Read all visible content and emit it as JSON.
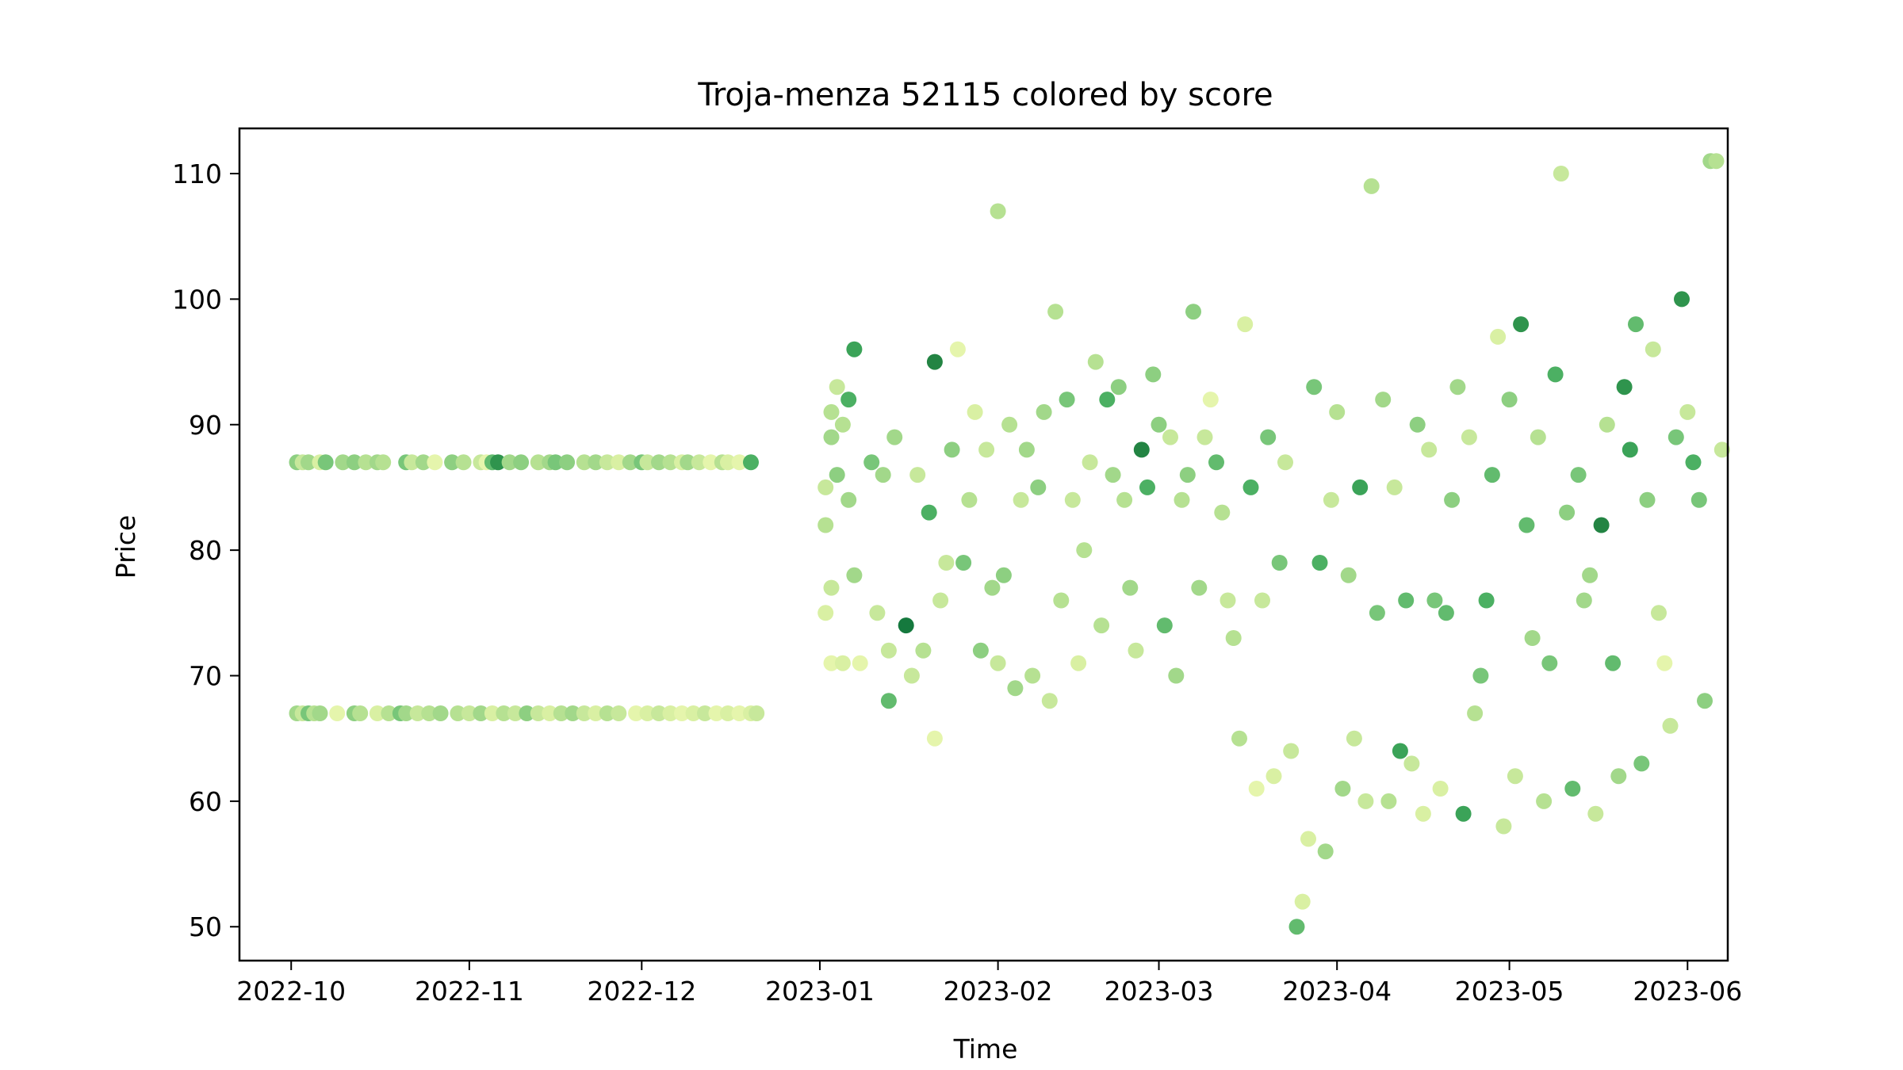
{
  "chart_data": {
    "type": "scatter",
    "title": "Troja-menza 52115 colored by score",
    "xlabel": "Time",
    "ylabel": "Price",
    "xlim": [
      "2022-09-22",
      "2023-06-08"
    ],
    "ylim": [
      47.3,
      113.6
    ],
    "xticks": [
      "2022-10",
      "2022-11",
      "2022-12",
      "2023-01",
      "2023-02",
      "2023-03",
      "2023-04",
      "2023-05",
      "2023-06"
    ],
    "xtick_dates": [
      "2022-10-01",
      "2022-11-01",
      "2022-12-01",
      "2023-01-01",
      "2023-02-01",
      "2023-03-01",
      "2023-04-01",
      "2023-05-01",
      "2023-06-01"
    ],
    "yticks": [
      50,
      60,
      70,
      80,
      90,
      100,
      110
    ],
    "colormap": "YlGn",
    "colormap_stops": [
      "#ffffe5",
      "#f7fcb9",
      "#d9f0a3",
      "#addd8e",
      "#78c679",
      "#41ab5d",
      "#238443",
      "#006837",
      "#004529"
    ],
    "grid": false,
    "legend": "none",
    "points": [
      [
        "2022-10-02",
        87,
        0.45
      ],
      [
        "2022-10-03",
        87,
        0.3
      ],
      [
        "2022-10-04",
        87,
        0.4
      ],
      [
        "2022-10-06",
        87,
        0.25
      ],
      [
        "2022-10-07",
        87,
        0.5
      ],
      [
        "2022-10-10",
        87,
        0.4
      ],
      [
        "2022-10-12",
        87,
        0.45
      ],
      [
        "2022-10-14",
        87,
        0.35
      ],
      [
        "2022-10-16",
        87,
        0.4
      ],
      [
        "2022-10-17",
        87,
        0.35
      ],
      [
        "2022-10-21",
        87,
        0.5
      ],
      [
        "2022-10-22",
        87,
        0.3
      ],
      [
        "2022-10-24",
        87,
        0.4
      ],
      [
        "2022-10-26",
        87,
        0.2
      ],
      [
        "2022-10-29",
        87,
        0.45
      ],
      [
        "2022-10-31",
        87,
        0.35
      ],
      [
        "2022-11-03",
        87,
        0.3
      ],
      [
        "2022-11-04",
        87,
        0.2
      ],
      [
        "2022-11-05",
        87,
        0.55
      ],
      [
        "2022-11-06",
        87,
        0.7
      ],
      [
        "2022-11-08",
        87,
        0.4
      ],
      [
        "2022-11-10",
        87,
        0.45
      ],
      [
        "2022-11-13",
        87,
        0.35
      ],
      [
        "2022-11-15",
        87,
        0.4
      ],
      [
        "2022-11-16",
        87,
        0.5
      ],
      [
        "2022-11-18",
        87,
        0.45
      ],
      [
        "2022-11-21",
        87,
        0.35
      ],
      [
        "2022-11-23",
        87,
        0.4
      ],
      [
        "2022-11-25",
        87,
        0.3
      ],
      [
        "2022-11-27",
        87,
        0.25
      ],
      [
        "2022-11-29",
        87,
        0.4
      ],
      [
        "2022-12-01",
        87,
        0.5
      ],
      [
        "2022-12-02",
        87,
        0.3
      ],
      [
        "2022-12-04",
        87,
        0.4
      ],
      [
        "2022-12-06",
        87,
        0.35
      ],
      [
        "2022-12-08",
        87,
        0.25
      ],
      [
        "2022-12-09",
        87,
        0.4
      ],
      [
        "2022-12-11",
        87,
        0.3
      ],
      [
        "2022-12-13",
        87,
        0.2
      ],
      [
        "2022-12-15",
        87,
        0.35
      ],
      [
        "2022-12-16",
        87,
        0.25
      ],
      [
        "2022-12-18",
        87,
        0.2
      ],
      [
        "2022-12-20",
        87,
        0.6
      ],
      [
        "2022-10-02",
        67,
        0.4
      ],
      [
        "2022-10-03",
        67,
        0.3
      ],
      [
        "2022-10-04",
        67,
        0.5
      ],
      [
        "2022-10-05",
        67,
        0.35
      ],
      [
        "2022-10-06",
        67,
        0.4
      ],
      [
        "2022-10-09",
        67,
        0.2
      ],
      [
        "2022-10-12",
        67,
        0.45
      ],
      [
        "2022-10-13",
        67,
        0.35
      ],
      [
        "2022-10-16",
        67,
        0.25
      ],
      [
        "2022-10-18",
        67,
        0.35
      ],
      [
        "2022-10-20",
        67,
        0.5
      ],
      [
        "2022-10-21",
        67,
        0.4
      ],
      [
        "2022-10-23",
        67,
        0.3
      ],
      [
        "2022-10-25",
        67,
        0.35
      ],
      [
        "2022-10-27",
        67,
        0.4
      ],
      [
        "2022-10-30",
        67,
        0.35
      ],
      [
        "2022-11-01",
        67,
        0.3
      ],
      [
        "2022-11-03",
        67,
        0.4
      ],
      [
        "2022-11-05",
        67,
        0.25
      ],
      [
        "2022-11-07",
        67,
        0.35
      ],
      [
        "2022-11-09",
        67,
        0.3
      ],
      [
        "2022-11-11",
        67,
        0.45
      ],
      [
        "2022-11-13",
        67,
        0.3
      ],
      [
        "2022-11-15",
        67,
        0.25
      ],
      [
        "2022-11-17",
        67,
        0.35
      ],
      [
        "2022-11-19",
        67,
        0.4
      ],
      [
        "2022-11-21",
        67,
        0.3
      ],
      [
        "2022-11-23",
        67,
        0.25
      ],
      [
        "2022-11-25",
        67,
        0.35
      ],
      [
        "2022-11-27",
        67,
        0.3
      ],
      [
        "2022-11-30",
        67,
        0.2
      ],
      [
        "2022-12-02",
        67,
        0.25
      ],
      [
        "2022-12-04",
        67,
        0.3
      ],
      [
        "2022-12-06",
        67,
        0.25
      ],
      [
        "2022-12-08",
        67,
        0.2
      ],
      [
        "2022-12-10",
        67,
        0.25
      ],
      [
        "2022-12-12",
        67,
        0.3
      ],
      [
        "2022-12-14",
        67,
        0.2
      ],
      [
        "2022-12-16",
        67,
        0.25
      ],
      [
        "2022-12-18",
        67,
        0.2
      ],
      [
        "2022-12-20",
        67,
        0.25
      ],
      [
        "2022-12-21",
        67,
        0.3
      ],
      [
        "2023-01-02",
        85,
        0.3
      ],
      [
        "2023-01-02",
        82,
        0.35
      ],
      [
        "2023-01-03",
        89,
        0.4
      ],
      [
        "2023-01-03",
        91,
        0.35
      ],
      [
        "2023-01-04",
        93,
        0.3
      ],
      [
        "2023-01-05",
        90,
        0.35
      ],
      [
        "2023-01-06",
        92,
        0.6
      ],
      [
        "2023-01-07",
        96,
        0.65
      ],
      [
        "2023-01-03",
        77,
        0.3
      ],
      [
        "2023-01-02",
        75,
        0.25
      ],
      [
        "2023-01-04",
        86,
        0.45
      ],
      [
        "2023-01-06",
        84,
        0.4
      ],
      [
        "2023-01-07",
        78,
        0.4
      ],
      [
        "2023-01-03",
        71,
        0.2
      ],
      [
        "2023-01-05",
        71,
        0.25
      ],
      [
        "2023-01-08",
        71,
        0.2
      ],
      [
        "2023-01-10",
        87,
        0.5
      ],
      [
        "2023-01-11",
        75,
        0.3
      ],
      [
        "2023-01-12",
        86,
        0.4
      ],
      [
        "2023-01-13",
        72,
        0.3
      ],
      [
        "2023-01-13",
        68,
        0.55
      ],
      [
        "2023-01-14",
        89,
        0.4
      ],
      [
        "2023-01-16",
        74,
        0.8
      ],
      [
        "2023-01-17",
        70,
        0.3
      ],
      [
        "2023-01-18",
        86,
        0.3
      ],
      [
        "2023-01-19",
        72,
        0.35
      ],
      [
        "2023-01-20",
        83,
        0.6
      ],
      [
        "2023-01-21",
        95,
        0.75
      ],
      [
        "2023-01-21",
        65,
        0.2
      ],
      [
        "2023-01-22",
        76,
        0.3
      ],
      [
        "2023-01-23",
        79,
        0.3
      ],
      [
        "2023-01-24",
        88,
        0.45
      ],
      [
        "2023-01-25",
        96,
        0.2
      ],
      [
        "2023-01-26",
        79,
        0.5
      ],
      [
        "2023-01-27",
        84,
        0.35
      ],
      [
        "2023-01-28",
        91,
        0.25
      ],
      [
        "2023-01-29",
        72,
        0.45
      ],
      [
        "2023-01-30",
        88,
        0.3
      ],
      [
        "2023-01-31",
        77,
        0.4
      ],
      [
        "2023-02-01",
        107,
        0.35
      ],
      [
        "2023-02-01",
        71,
        0.3
      ],
      [
        "2023-02-02",
        78,
        0.45
      ],
      [
        "2023-02-03",
        90,
        0.35
      ],
      [
        "2023-02-04",
        69,
        0.4
      ],
      [
        "2023-02-05",
        84,
        0.3
      ],
      [
        "2023-02-06",
        88,
        0.4
      ],
      [
        "2023-02-07",
        70,
        0.35
      ],
      [
        "2023-02-08",
        85,
        0.45
      ],
      [
        "2023-02-09",
        91,
        0.4
      ],
      [
        "2023-02-10",
        68,
        0.3
      ],
      [
        "2023-02-11",
        99,
        0.35
      ],
      [
        "2023-02-12",
        76,
        0.35
      ],
      [
        "2023-02-13",
        92,
        0.5
      ],
      [
        "2023-02-14",
        84,
        0.3
      ],
      [
        "2023-02-15",
        71,
        0.25
      ],
      [
        "2023-02-16",
        80,
        0.35
      ],
      [
        "2023-02-17",
        87,
        0.3
      ],
      [
        "2023-02-18",
        95,
        0.35
      ],
      [
        "2023-02-19",
        74,
        0.35
      ],
      [
        "2023-02-20",
        92,
        0.6
      ],
      [
        "2023-02-21",
        86,
        0.4
      ],
      [
        "2023-02-22",
        93,
        0.45
      ],
      [
        "2023-02-23",
        84,
        0.35
      ],
      [
        "2023-02-24",
        77,
        0.4
      ],
      [
        "2023-02-25",
        72,
        0.3
      ],
      [
        "2023-02-26",
        88,
        0.75
      ],
      [
        "2023-02-27",
        85,
        0.6
      ],
      [
        "2023-02-28",
        94,
        0.45
      ],
      [
        "2023-03-01",
        90,
        0.45
      ],
      [
        "2023-03-02",
        74,
        0.55
      ],
      [
        "2023-03-03",
        89,
        0.3
      ],
      [
        "2023-03-04",
        70,
        0.4
      ],
      [
        "2023-03-05",
        84,
        0.35
      ],
      [
        "2023-03-06",
        86,
        0.45
      ],
      [
        "2023-03-07",
        99,
        0.45
      ],
      [
        "2023-03-08",
        77,
        0.4
      ],
      [
        "2023-03-09",
        89,
        0.3
      ],
      [
        "2023-03-10",
        92,
        0.2
      ],
      [
        "2023-03-11",
        87,
        0.55
      ],
      [
        "2023-03-12",
        83,
        0.35
      ],
      [
        "2023-03-13",
        76,
        0.3
      ],
      [
        "2023-03-14",
        73,
        0.35
      ],
      [
        "2023-03-15",
        65,
        0.35
      ],
      [
        "2023-03-16",
        98,
        0.25
      ],
      [
        "2023-03-17",
        85,
        0.6
      ],
      [
        "2023-03-18",
        61,
        0.2
      ],
      [
        "2023-03-19",
        76,
        0.3
      ],
      [
        "2023-03-20",
        89,
        0.5
      ],
      [
        "2023-03-21",
        62,
        0.25
      ],
      [
        "2023-03-22",
        79,
        0.5
      ],
      [
        "2023-03-23",
        87,
        0.3
      ],
      [
        "2023-03-24",
        64,
        0.3
      ],
      [
        "2023-03-25",
        50,
        0.55
      ],
      [
        "2023-03-26",
        52,
        0.25
      ],
      [
        "2023-03-27",
        57,
        0.25
      ],
      [
        "2023-03-28",
        93,
        0.5
      ],
      [
        "2023-03-29",
        79,
        0.6
      ],
      [
        "2023-03-30",
        56,
        0.4
      ],
      [
        "2023-03-31",
        84,
        0.3
      ],
      [
        "2023-04-01",
        91,
        0.35
      ],
      [
        "2023-04-02",
        61,
        0.4
      ],
      [
        "2023-04-03",
        78,
        0.4
      ],
      [
        "2023-04-04",
        65,
        0.3
      ],
      [
        "2023-04-05",
        85,
        0.65
      ],
      [
        "2023-04-06",
        60,
        0.3
      ],
      [
        "2023-04-07",
        109,
        0.35
      ],
      [
        "2023-04-08",
        75,
        0.5
      ],
      [
        "2023-04-09",
        92,
        0.4
      ],
      [
        "2023-04-10",
        60,
        0.35
      ],
      [
        "2023-04-11",
        85,
        0.3
      ],
      [
        "2023-04-12",
        64,
        0.65
      ],
      [
        "2023-04-13",
        76,
        0.55
      ],
      [
        "2023-04-14",
        63,
        0.3
      ],
      [
        "2023-04-15",
        90,
        0.45
      ],
      [
        "2023-04-16",
        59,
        0.25
      ],
      [
        "2023-04-17",
        88,
        0.3
      ],
      [
        "2023-04-18",
        76,
        0.5
      ],
      [
        "2023-04-19",
        61,
        0.25
      ],
      [
        "2023-04-20",
        75,
        0.55
      ],
      [
        "2023-04-21",
        84,
        0.45
      ],
      [
        "2023-04-22",
        93,
        0.4
      ],
      [
        "2023-04-23",
        59,
        0.65
      ],
      [
        "2023-04-24",
        89,
        0.3
      ],
      [
        "2023-04-25",
        67,
        0.35
      ],
      [
        "2023-04-26",
        70,
        0.5
      ],
      [
        "2023-04-27",
        76,
        0.6
      ],
      [
        "2023-04-28",
        86,
        0.55
      ],
      [
        "2023-04-29",
        97,
        0.25
      ],
      [
        "2023-04-30",
        58,
        0.3
      ],
      [
        "2023-05-01",
        92,
        0.45
      ],
      [
        "2023-05-02",
        62,
        0.3
      ],
      [
        "2023-05-03",
        98,
        0.7
      ],
      [
        "2023-05-04",
        82,
        0.55
      ],
      [
        "2023-05-05",
        73,
        0.4
      ],
      [
        "2023-05-06",
        89,
        0.35
      ],
      [
        "2023-05-07",
        60,
        0.35
      ],
      [
        "2023-05-08",
        71,
        0.5
      ],
      [
        "2023-05-09",
        94,
        0.6
      ],
      [
        "2023-05-10",
        110,
        0.3
      ],
      [
        "2023-05-11",
        83,
        0.45
      ],
      [
        "2023-05-12",
        61,
        0.55
      ],
      [
        "2023-05-13",
        86,
        0.5
      ],
      [
        "2023-05-14",
        76,
        0.4
      ],
      [
        "2023-05-15",
        78,
        0.4
      ],
      [
        "2023-05-16",
        59,
        0.3
      ],
      [
        "2023-05-17",
        82,
        0.75
      ],
      [
        "2023-05-18",
        90,
        0.35
      ],
      [
        "2023-05-19",
        71,
        0.55
      ],
      [
        "2023-05-20",
        62,
        0.4
      ],
      [
        "2023-05-21",
        93,
        0.7
      ],
      [
        "2023-05-22",
        88,
        0.65
      ],
      [
        "2023-05-23",
        98,
        0.55
      ],
      [
        "2023-05-24",
        63,
        0.5
      ],
      [
        "2023-05-25",
        84,
        0.45
      ],
      [
        "2023-05-26",
        96,
        0.3
      ],
      [
        "2023-05-27",
        75,
        0.3
      ],
      [
        "2023-05-28",
        71,
        0.2
      ],
      [
        "2023-05-29",
        66,
        0.3
      ],
      [
        "2023-05-30",
        89,
        0.5
      ],
      [
        "2023-05-31",
        100,
        0.7
      ],
      [
        "2023-06-01",
        91,
        0.3
      ],
      [
        "2023-06-02",
        87,
        0.6
      ],
      [
        "2023-06-03",
        84,
        0.5
      ],
      [
        "2023-06-04",
        68,
        0.45
      ],
      [
        "2023-06-05",
        111,
        0.4
      ],
      [
        "2023-06-06",
        111,
        0.35
      ],
      [
        "2023-06-07",
        88,
        0.3
      ]
    ]
  }
}
